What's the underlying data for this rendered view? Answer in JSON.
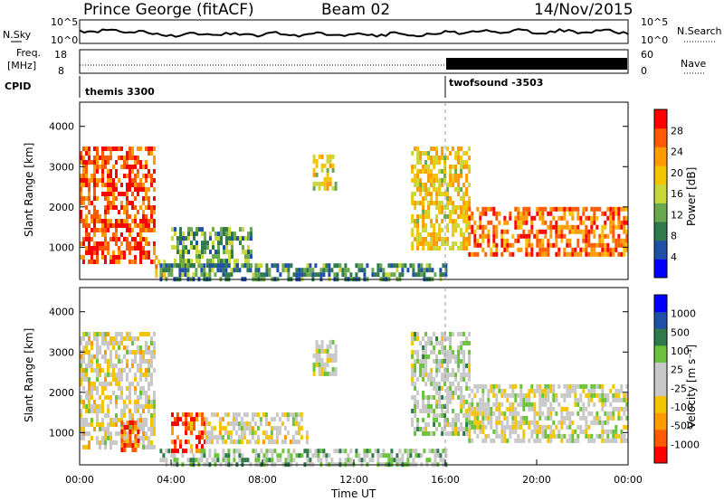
{
  "header": {
    "station": "Prince George (fitACF)",
    "beam": "Beam 02",
    "date": "14/Nov/2015"
  },
  "summary_panels": {
    "nsky_label": "N.Sky",
    "nsearch_label": "N.Search",
    "noise_ticks": [
      "10^5",
      "10^0"
    ],
    "freq_label_line1": "Freq.",
    "freq_label_line2": "[MHz]",
    "freq_ticks": [
      "18",
      "8"
    ],
    "nave_label": "Nave",
    "nave_ticks": [
      "60",
      "0"
    ],
    "cpid_label": "CPID",
    "cpid_segments": [
      {
        "name": "themis 3300",
        "start_hour": 0
      },
      {
        "name": "twofsound -3503",
        "start_hour": 16
      }
    ]
  },
  "colors": {
    "power_scale": [
      "#0000ff",
      "#1f4fa8",
      "#2f7a4a",
      "#6aa84f",
      "#c8d83a",
      "#f5c400",
      "#ff9a00",
      "#ff5a00",
      "#ff0000"
    ],
    "velocity_scale": [
      "#ff0000",
      "#ff5a00",
      "#ff9a00",
      "#f5c400",
      "#c8c8c8",
      "#c8c8c8",
      "#6ac33a",
      "#2f7a4a",
      "#1f4fa8",
      "#0000ff"
    ]
  },
  "chart_data": [
    {
      "type": "heatmap",
      "name": "power",
      "ylabel": "Slant Range [km]",
      "yticks": [
        "1000",
        "2000",
        "3000",
        "4000"
      ],
      "ylim": [
        200,
        4600
      ],
      "xlim": [
        0,
        24
      ],
      "colorbar_label": "Power [dB]",
      "colorbar_ticks": [
        "4",
        "8",
        "12",
        "16",
        "20",
        "24",
        "28"
      ],
      "regions": [
        {
          "h0": 0.0,
          "h1": 3.3,
          "r0": 600,
          "r1": 3500,
          "level": 0.85
        },
        {
          "h0": 3.3,
          "h1": 3.7,
          "r0": 300,
          "r1": 800,
          "level": 0.7
        },
        {
          "h0": 4.0,
          "h1": 7.5,
          "r0": 600,
          "r1": 1500,
          "level": 0.35
        },
        {
          "h0": 3.5,
          "h1": 16.0,
          "r0": 200,
          "r1": 600,
          "level": 0.3
        },
        {
          "h0": 10.2,
          "h1": 11.2,
          "r0": 2500,
          "r1": 3300,
          "level": 0.55
        },
        {
          "h0": 14.5,
          "h1": 17.0,
          "r0": 1000,
          "r1": 3500,
          "level": 0.6
        },
        {
          "h0": 17.0,
          "h1": 24.0,
          "r0": 800,
          "r1": 2000,
          "level": 0.8
        }
      ]
    },
    {
      "type": "heatmap",
      "name": "velocity",
      "ylabel": "Slant Range [km]",
      "yticks": [
        "1000",
        "2000",
        "3000",
        "4000"
      ],
      "ylim": [
        200,
        4600
      ],
      "xlim": [
        0,
        24
      ],
      "xticks": [
        "00:00",
        "04:00",
        "08:00",
        "12:00",
        "16:00",
        "20:00",
        "00:00"
      ],
      "xlabel": "Time UT",
      "colorbar_label": "Velocity [m s⁻¹]",
      "colorbar_ticks": [
        "1000",
        "500",
        "100",
        "25",
        "-25",
        "-100",
        "-500",
        "-1000"
      ],
      "regions": [
        {
          "h0": 0.0,
          "h1": 3.3,
          "r0": 600,
          "r1": 3500,
          "level": 0.45
        },
        {
          "h0": 1.8,
          "h1": 2.6,
          "r0": 600,
          "r1": 1300,
          "level": 0.15
        },
        {
          "h0": 4.0,
          "h1": 5.5,
          "r0": 600,
          "r1": 1500,
          "level": 0.15
        },
        {
          "h0": 5.5,
          "h1": 10.0,
          "r0": 800,
          "r1": 1500,
          "level": 0.45
        },
        {
          "h0": 3.5,
          "h1": 16.0,
          "r0": 200,
          "r1": 600,
          "level": 0.6
        },
        {
          "h0": 10.2,
          "h1": 11.2,
          "r0": 2500,
          "r1": 3300,
          "level": 0.5
        },
        {
          "h0": 14.5,
          "h1": 17.0,
          "r0": 1000,
          "r1": 3500,
          "level": 0.55
        },
        {
          "h0": 17.0,
          "h1": 24.0,
          "r0": 800,
          "r1": 2200,
          "level": 0.48
        }
      ]
    }
  ]
}
